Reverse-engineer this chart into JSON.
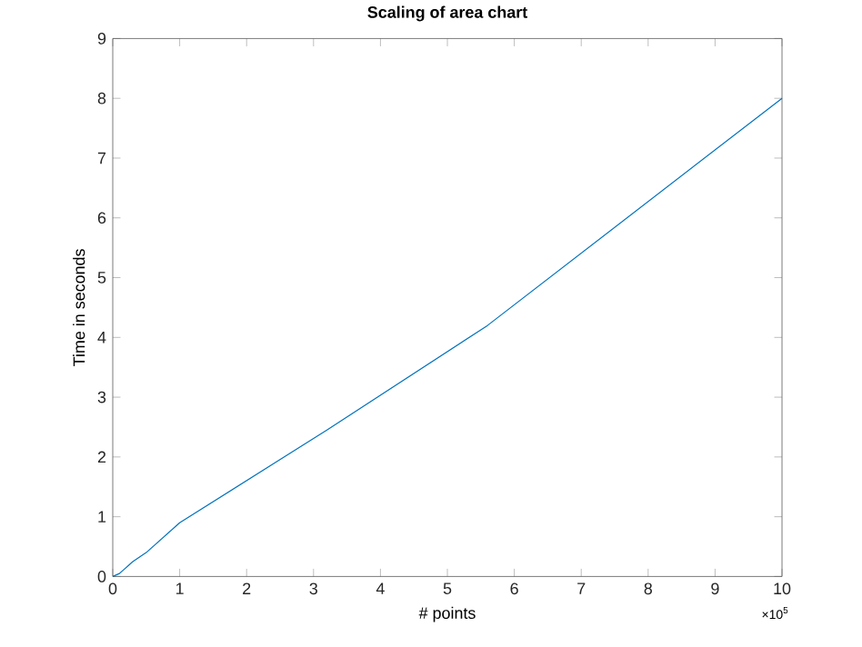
{
  "chart_data": {
    "type": "line",
    "title": "Scaling of area chart",
    "xlabel": "# points",
    "ylabel": "Time in seconds",
    "annotations": [
      "×10$^{5}$"
    ],
    "x": [
      0,
      0.1,
      0.3,
      0.5,
      1,
      3.2,
      5.6,
      10
    ],
    "series": [
      {
        "color": "#0072bd",
        "values": [
          0,
          0.05,
          0.25,
          0.4,
          0.9,
          2.45,
          4.2,
          8.0
        ]
      }
    ],
    "xlim": [
      0,
      10
    ],
    "xticks": [
      0,
      1,
      2,
      3,
      4,
      5,
      6,
      7,
      8,
      9,
      10
    ],
    "ylim": [
      0,
      9
    ],
    "yticks": [
      0,
      1,
      2,
      3,
      4,
      5,
      6,
      7,
      8,
      9
    ],
    "grid": false
  }
}
